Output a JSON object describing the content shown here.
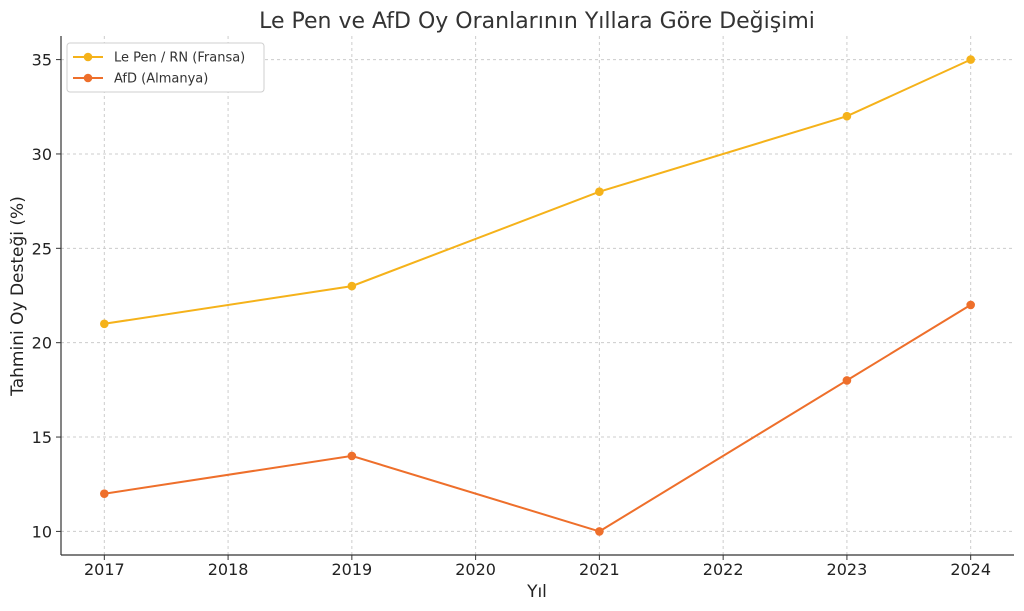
{
  "chart_data": {
    "type": "line",
    "title": "Le Pen ve AfD Oy Oranlarının Yıllara Göre Değişimi",
    "xlabel": "Yıl",
    "ylabel": "Tahmini Oy Desteği (%)",
    "x_ticks": [
      "2017",
      "2018",
      "2019",
      "2020",
      "2021",
      "2022",
      "2023",
      "2024"
    ],
    "y_ticks": [
      "10",
      "15",
      "20",
      "25",
      "30",
      "35"
    ],
    "xlim": [
      2016.65,
      2024.35
    ],
    "ylim": [
      8.75,
      36.25
    ],
    "grid": true,
    "legend_position": "top-left",
    "series": [
      {
        "name": "Le Pen / RN (Fransa)",
        "color": "#f5b21a",
        "x": [
          2017,
          2019,
          2021,
          2023,
          2024
        ],
        "y": [
          21,
          23,
          28,
          32,
          35
        ]
      },
      {
        "name": "AfD (Almanya)",
        "color": "#ee6f2b",
        "x": [
          2017,
          2019,
          2021,
          2023,
          2024
        ],
        "y": [
          12,
          14,
          10,
          18,
          22
        ]
      }
    ]
  }
}
